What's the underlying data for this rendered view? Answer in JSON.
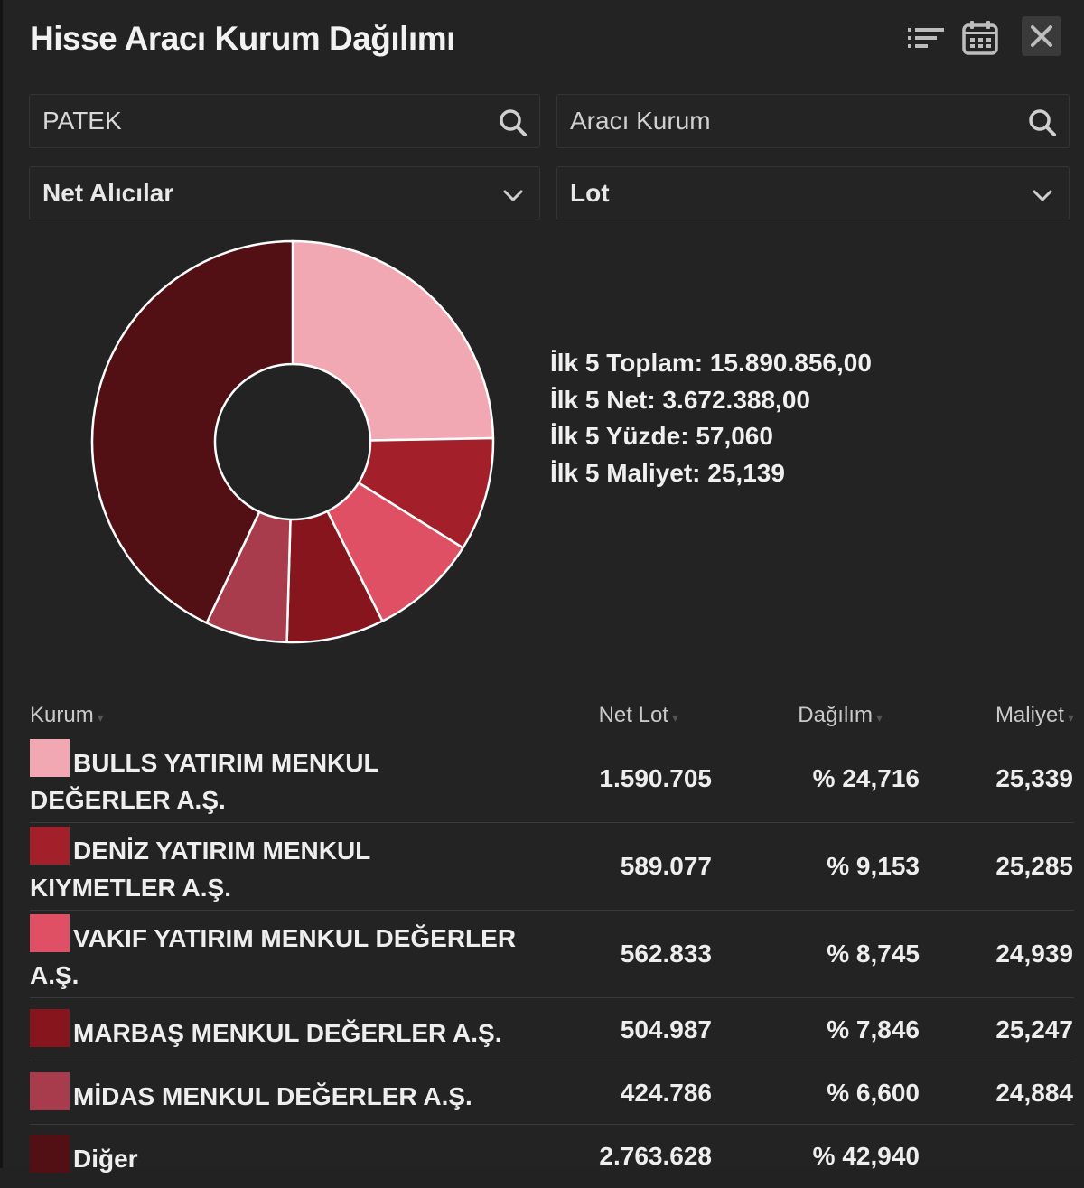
{
  "window": {
    "title": "Hisse Aracı Kurum Dağılımı"
  },
  "header_icons": [
    "filter-list-icon",
    "calendar-icon",
    "close-icon"
  ],
  "filters": {
    "stock_search": {
      "value": "PATEK",
      "placeholder": ""
    },
    "broker_search": {
      "value": "",
      "placeholder": "Aracı Kurum"
    },
    "side_select": {
      "selected": "Net Alıcılar"
    },
    "unit_select": {
      "selected": "Lot"
    }
  },
  "summary": {
    "line1": "İlk 5 Toplam: 15.890.856,00",
    "line2": "İlk 5 Net: 3.672.388,00",
    "line3": "İlk 5 Yüzde: 57,060",
    "line4": "İlk 5 Maliyet: 25,139"
  },
  "table": {
    "headers": {
      "kurum": "Kurum",
      "net_lot": "Net Lot",
      "dagilim": "Dağılım",
      "maliyet": "Maliyet"
    },
    "rows": [
      {
        "name": "BULLS YATIRIM MENKUL DEĞERLER A.Ş.",
        "net_lot": "1.590.705",
        "dagilim": "% 24,716",
        "maliyet": "25,339",
        "color": "#f2a8b2"
      },
      {
        "name": "DENİZ YATIRIM MENKUL KIYMETLER A.Ş.",
        "net_lot": "589.077",
        "dagilim": "% 9,153",
        "maliyet": "25,285",
        "color": "#a3202a"
      },
      {
        "name": "VAKIF YATIRIM MENKUL DEĞERLER A.Ş.",
        "net_lot": "562.833",
        "dagilim": "% 8,745",
        "maliyet": "24,939",
        "color": "#e05065"
      },
      {
        "name": "MARBAŞ MENKUL DEĞERLER A.Ş.",
        "net_lot": "504.987",
        "dagilim": "% 7,846",
        "maliyet": "25,247",
        "color": "#87151e"
      },
      {
        "name": "MİDAS MENKUL DEĞERLER A.Ş.",
        "net_lot": "424.786",
        "dagilim": "% 6,600",
        "maliyet": "24,884",
        "color": "#a83b4c"
      },
      {
        "name": "Diğer",
        "net_lot": "2.763.628",
        "dagilim": "% 42,940",
        "maliyet": "",
        "color": "#521015"
      }
    ]
  },
  "chart_data": {
    "type": "pie",
    "categories": [
      "BULLS YATIRIM MENKUL DEĞERLER A.Ş.",
      "DENİZ YATIRIM MENKUL KIYMETLER A.Ş.",
      "VAKIF YATIRIM MENKUL DEĞERLER A.Ş.",
      "MARBAŞ MENKUL DEĞERLER A.Ş.",
      "MİDAS MENKUL DEĞERLER A.Ş.",
      "Diğer"
    ],
    "values": [
      24.716,
      9.153,
      8.745,
      7.846,
      6.6,
      42.94
    ],
    "colors": [
      "#f2a8b2",
      "#a3202a",
      "#e05065",
      "#87151e",
      "#a83b4c",
      "#521015"
    ],
    "donut": true
  }
}
